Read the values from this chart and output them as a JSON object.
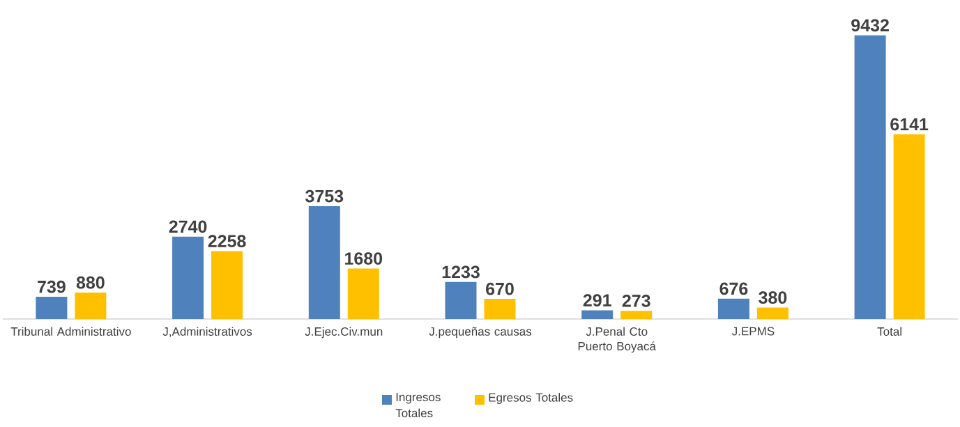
{
  "chart_data": {
    "type": "bar",
    "categories": [
      "Tribunal Administrativo",
      "J,Administrativos",
      "J.Ejec.Civ.mun",
      "J.pequeñas causas",
      "J.Penal Cto Puerto Boyacá",
      "J.EPMS",
      "Total"
    ],
    "series": [
      {
        "name": "Ingresos Totales",
        "color": "#4f81bd",
        "values": [
          739,
          2740,
          3753,
          1233,
          291,
          676,
          9432
        ]
      },
      {
        "name": "Egresos Totales",
        "color": "#ffc000",
        "values": [
          880,
          2258,
          1680,
          670,
          273,
          380,
          6141
        ]
      }
    ],
    "data_labels": true,
    "legend": "bottom",
    "grid": false
  }
}
